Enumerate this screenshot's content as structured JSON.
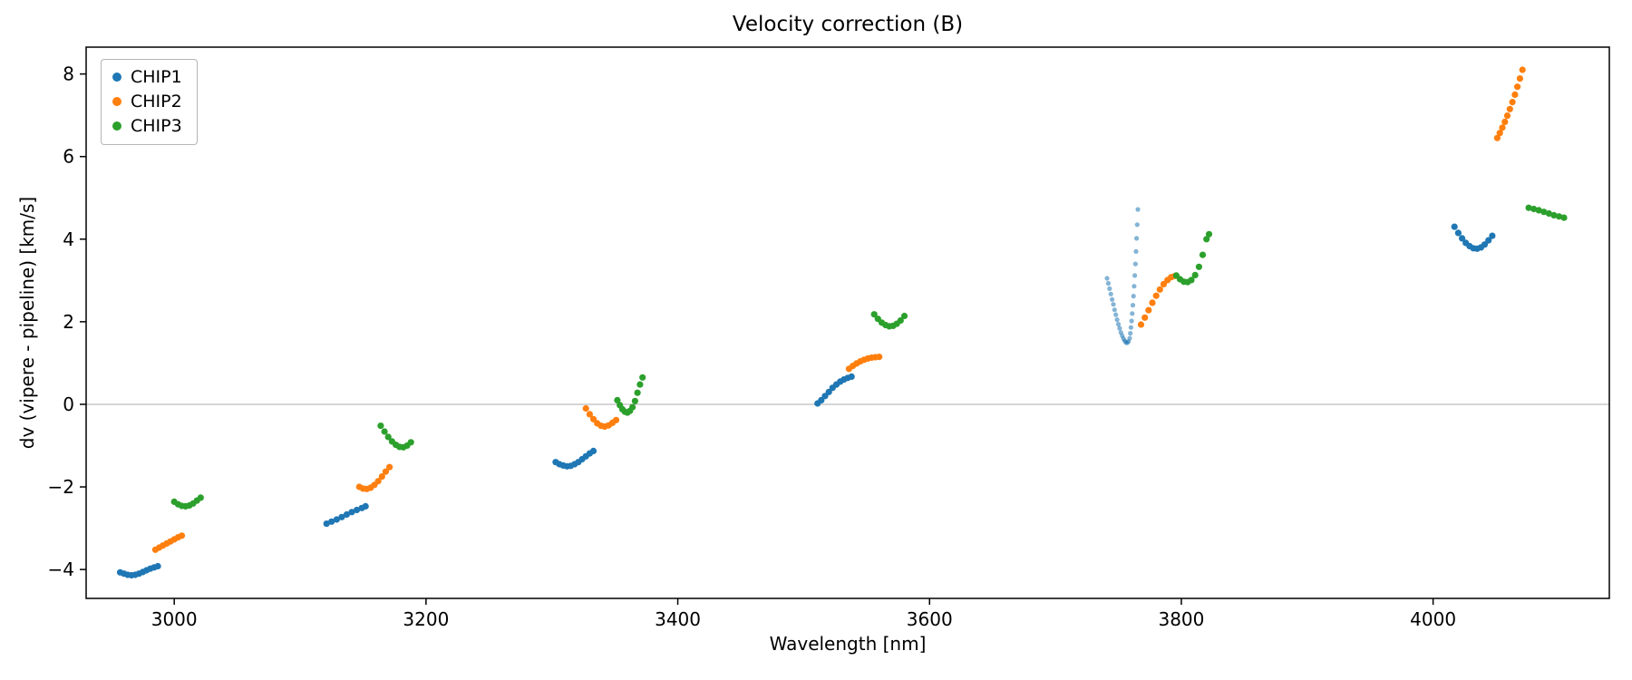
{
  "chart_data": {
    "type": "scatter",
    "title": "Velocity correction (B)",
    "xlabel": "Wavelength [nm]",
    "ylabel": "dv (vipere - pipeline) [km/s]",
    "xlim": [
      2930,
      4140
    ],
    "ylim": [
      -4.7,
      8.65
    ],
    "xticks": [
      3000,
      3200,
      3400,
      3600,
      3800,
      4000
    ],
    "yticks": [
      -4,
      -2,
      0,
      2,
      4,
      6,
      8
    ],
    "zero_line": true,
    "grid": false,
    "legend_position": "upper left",
    "series": [
      {
        "name": "CHIP1",
        "color": "#1f77b4",
        "segments": [
          {
            "alpha": 1,
            "size": 3.6,
            "points": [
              [
                2957,
                -4.07
              ],
              [
                2960,
                -4.1
              ],
              [
                2963,
                -4.13
              ],
              [
                2966,
                -4.14
              ],
              [
                2969,
                -4.13
              ],
              [
                2972,
                -4.1
              ],
              [
                2975,
                -4.06
              ],
              [
                2978,
                -4.02
              ],
              [
                2981,
                -3.98
              ],
              [
                2984,
                -3.95
              ],
              [
                2987,
                -3.92
              ]
            ]
          },
          {
            "alpha": 1,
            "size": 3.6,
            "points": [
              [
                3121,
                -2.89
              ],
              [
                3125,
                -2.84
              ],
              [
                3129,
                -2.79
              ],
              [
                3133,
                -2.73
              ],
              [
                3137,
                -2.67
              ],
              [
                3141,
                -2.61
              ],
              [
                3145,
                -2.56
              ],
              [
                3149,
                -2.51
              ],
              [
                3152,
                -2.47
              ]
            ]
          },
          {
            "alpha": 1,
            "size": 3.6,
            "points": [
              [
                3303,
                -1.4
              ],
              [
                3306,
                -1.45
              ],
              [
                3309,
                -1.48
              ],
              [
                3312,
                -1.5
              ],
              [
                3315,
                -1.49
              ],
              [
                3318,
                -1.45
              ],
              [
                3321,
                -1.4
              ],
              [
                3324,
                -1.33
              ],
              [
                3327,
                -1.26
              ],
              [
                3330,
                -1.19
              ],
              [
                3333,
                -1.13
              ]
            ]
          },
          {
            "alpha": 1,
            "size": 3.6,
            "points": [
              [
                3511,
                0.02
              ],
              [
                3514,
                0.1
              ],
              [
                3517,
                0.2
              ],
              [
                3520,
                0.3
              ],
              [
                3523,
                0.4
              ],
              [
                3526,
                0.48
              ],
              [
                3529,
                0.55
              ],
              [
                3532,
                0.6
              ],
              [
                3535,
                0.64
              ],
              [
                3538,
                0.67
              ]
            ]
          },
          {
            "alpha": 0.55,
            "size": 2.6,
            "points": [
              [
                3741,
                3.05
              ],
              [
                3742,
                2.93
              ],
              [
                3743,
                2.8
              ],
              [
                3744,
                2.67
              ],
              [
                3745,
                2.54
              ],
              [
                3746,
                2.42
              ],
              [
                3747,
                2.29
              ],
              [
                3748,
                2.17
              ],
              [
                3749,
                2.05
              ],
              [
                3750,
                1.94
              ],
              [
                3751,
                1.84
              ],
              [
                3752,
                1.74
              ],
              [
                3753,
                1.66
              ],
              [
                3754,
                1.59
              ],
              [
                3755,
                1.54
              ],
              [
                3756,
                1.5
              ],
              [
                3757,
                1.49
              ],
              [
                3758,
                1.52
              ],
              [
                3759,
                1.6
              ],
              [
                3759.5,
                1.72
              ],
              [
                3760,
                1.86
              ],
              [
                3760.5,
                2.02
              ],
              [
                3761,
                2.2
              ],
              [
                3761.5,
                2.4
              ],
              [
                3762,
                2.62
              ],
              [
                3762.5,
                2.86
              ],
              [
                3763,
                3.12
              ],
              [
                3763.5,
                3.4
              ],
              [
                3764,
                3.7
              ],
              [
                3764.5,
                4.02
              ],
              [
                3765,
                4.35
              ],
              [
                3765.5,
                4.72
              ]
            ]
          },
          {
            "alpha": 1,
            "size": 3.6,
            "points": [
              [
                4017,
                4.3
              ],
              [
                4020,
                4.15
              ],
              [
                4023,
                4.02
              ],
              [
                4026,
                3.91
              ],
              [
                4029,
                3.83
              ],
              [
                4032,
                3.78
              ],
              [
                4035,
                3.77
              ],
              [
                4038,
                3.8
              ],
              [
                4041,
                3.87
              ],
              [
                4044,
                3.97
              ],
              [
                4047,
                4.08
              ]
            ]
          }
        ]
      },
      {
        "name": "CHIP2",
        "color": "#ff7f0e",
        "segments": [
          {
            "alpha": 1,
            "size": 3.6,
            "points": [
              [
                2985,
                -3.52
              ],
              [
                2988,
                -3.47
              ],
              [
                2991,
                -3.42
              ],
              [
                2994,
                -3.37
              ],
              [
                2997,
                -3.32
              ],
              [
                3000,
                -3.27
              ],
              [
                3003,
                -3.22
              ],
              [
                3006,
                -3.18
              ]
            ]
          },
          {
            "alpha": 1,
            "size": 3.6,
            "points": [
              [
                3147,
                -2.0
              ],
              [
                3150,
                -2.04
              ],
              [
                3153,
                -2.05
              ],
              [
                3156,
                -2.02
              ],
              [
                3159,
                -1.95
              ],
              [
                3162,
                -1.86
              ],
              [
                3165,
                -1.75
              ],
              [
                3168,
                -1.63
              ],
              [
                3171,
                -1.52
              ]
            ]
          },
          {
            "alpha": 1,
            "size": 3.6,
            "points": [
              [
                3327,
                -0.1
              ],
              [
                3330,
                -0.24
              ],
              [
                3333,
                -0.36
              ],
              [
                3336,
                -0.46
              ],
              [
                3339,
                -0.52
              ],
              [
                3342,
                -0.54
              ],
              [
                3345,
                -0.51
              ],
              [
                3348,
                -0.45
              ],
              [
                3351,
                -0.38
              ]
            ]
          },
          {
            "alpha": 1,
            "size": 3.6,
            "points": [
              [
                3536,
                0.86
              ],
              [
                3539,
                0.93
              ],
              [
                3542,
                0.99
              ],
              [
                3545,
                1.04
              ],
              [
                3548,
                1.08
              ],
              [
                3551,
                1.11
              ],
              [
                3554,
                1.13
              ],
              [
                3557,
                1.14
              ],
              [
                3560,
                1.15
              ]
            ]
          },
          {
            "alpha": 1,
            "size": 3.6,
            "points": [
              [
                3768,
                1.93
              ],
              [
                3771,
                2.1
              ],
              [
                3774,
                2.28
              ],
              [
                3777,
                2.46
              ],
              [
                3780,
                2.63
              ],
              [
                3783,
                2.78
              ],
              [
                3786,
                2.91
              ],
              [
                3789,
                3.01
              ],
              [
                3792,
                3.08
              ],
              [
                3795,
                3.11
              ]
            ]
          },
          {
            "alpha": 1,
            "size": 3.6,
            "points": [
              [
                4051,
                6.45
              ],
              [
                4053,
                6.57
              ],
              [
                4055,
                6.7
              ],
              [
                4057,
                6.84
              ],
              [
                4059,
                6.99
              ],
              [
                4061,
                7.15
              ],
              [
                4063,
                7.32
              ],
              [
                4065,
                7.5
              ],
              [
                4067,
                7.69
              ],
              [
                4069,
                7.89
              ],
              [
                4071,
                8.1
              ]
            ]
          }
        ]
      },
      {
        "name": "CHIP3",
        "color": "#2ca02c",
        "segments": [
          {
            "alpha": 1,
            "size": 3.6,
            "points": [
              [
                3000,
                -2.36
              ],
              [
                3003,
                -2.42
              ],
              [
                3006,
                -2.46
              ],
              [
                3009,
                -2.47
              ],
              [
                3012,
                -2.45
              ],
              [
                3015,
                -2.4
              ],
              [
                3018,
                -2.33
              ],
              [
                3021,
                -2.26
              ]
            ]
          },
          {
            "alpha": 1,
            "size": 3.6,
            "points": [
              [
                3164,
                -0.52
              ],
              [
                3167,
                -0.66
              ],
              [
                3170,
                -0.79
              ],
              [
                3173,
                -0.9
              ],
              [
                3176,
                -0.98
              ],
              [
                3179,
                -1.03
              ],
              [
                3182,
                -1.04
              ],
              [
                3185,
                -1.0
              ],
              [
                3188,
                -0.92
              ]
            ]
          },
          {
            "alpha": 1,
            "size": 3.6,
            "points": [
              [
                3352,
                0.1
              ],
              [
                3354,
                -0.02
              ],
              [
                3356,
                -0.12
              ],
              [
                3358,
                -0.18
              ],
              [
                3360,
                -0.2
              ],
              [
                3362,
                -0.16
              ],
              [
                3364,
                -0.07
              ],
              [
                3366,
                0.08
              ],
              [
                3368,
                0.28
              ],
              [
                3370,
                0.48
              ],
              [
                3372,
                0.65
              ]
            ]
          },
          {
            "alpha": 1,
            "size": 3.6,
            "points": [
              [
                3556,
                2.18
              ],
              [
                3559,
                2.07
              ],
              [
                3562,
                1.98
              ],
              [
                3565,
                1.92
              ],
              [
                3568,
                1.89
              ],
              [
                3571,
                1.9
              ],
              [
                3574,
                1.95
              ],
              [
                3577,
                2.03
              ],
              [
                3580,
                2.14
              ]
            ]
          },
          {
            "alpha": 1,
            "size": 3.6,
            "points": [
              [
                3796,
                3.12
              ],
              [
                3799,
                3.03
              ],
              [
                3802,
                2.97
              ],
              [
                3805,
                2.96
              ],
              [
                3808,
                3.01
              ],
              [
                3811,
                3.13
              ],
              [
                3814,
                3.33
              ],
              [
                3817,
                3.62
              ],
              [
                3820,
                4.0
              ],
              [
                3822,
                4.12
              ]
            ]
          },
          {
            "alpha": 1,
            "size": 3.6,
            "points": [
              [
                4076,
                4.76
              ],
              [
                4080,
                4.73
              ],
              [
                4084,
                4.7
              ],
              [
                4088,
                4.66
              ],
              [
                4092,
                4.62
              ],
              [
                4096,
                4.58
              ],
              [
                4100,
                4.55
              ],
              [
                4104,
                4.52
              ]
            ]
          }
        ]
      }
    ]
  }
}
